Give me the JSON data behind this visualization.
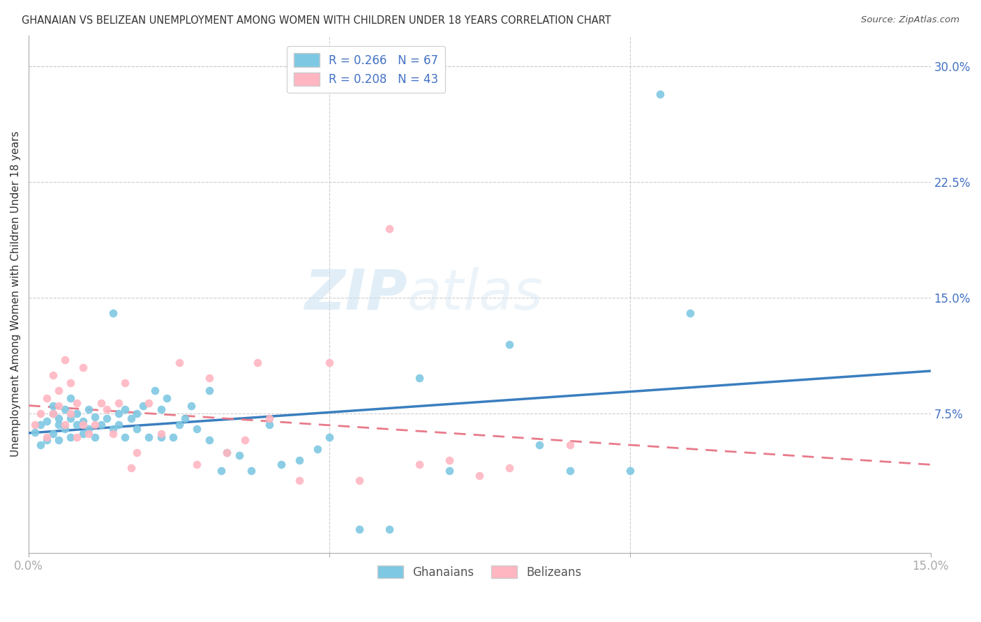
{
  "title": "GHANAIAN VS BELIZEAN UNEMPLOYMENT AMONG WOMEN WITH CHILDREN UNDER 18 YEARS CORRELATION CHART",
  "source": "Source: ZipAtlas.com",
  "ylabel": "Unemployment Among Women with Children Under 18 years",
  "xlim": [
    0.0,
    0.15
  ],
  "ylim": [
    -0.015,
    0.32
  ],
  "yticks_right": [
    0.3,
    0.225,
    0.15,
    0.075
  ],
  "ytick_labels_right": [
    "30.0%",
    "22.5%",
    "15.0%",
    "7.5%"
  ],
  "ghanaian_color": "#7ec8e3",
  "belizean_color": "#ffb6c1",
  "ghanaian_line_color": "#3a7ebf",
  "belizean_line_color": "#e87a8a",
  "R_ghanaian": 0.266,
  "N_ghanaian": 67,
  "R_belizean": 0.208,
  "N_belizean": 43,
  "background_color": "#ffffff",
  "grid_color": "#cccccc",
  "legend_label_ghanaian": "Ghanaians",
  "legend_label_belizean": "Belizeans",
  "ghanaian_x": [
    0.001,
    0.002,
    0.002,
    0.003,
    0.003,
    0.004,
    0.004,
    0.004,
    0.005,
    0.005,
    0.005,
    0.006,
    0.006,
    0.007,
    0.007,
    0.007,
    0.008,
    0.008,
    0.009,
    0.009,
    0.01,
    0.01,
    0.011,
    0.011,
    0.012,
    0.013,
    0.014,
    0.014,
    0.015,
    0.015,
    0.016,
    0.016,
    0.017,
    0.018,
    0.018,
    0.019,
    0.02,
    0.021,
    0.022,
    0.022,
    0.023,
    0.024,
    0.025,
    0.026,
    0.027,
    0.028,
    0.03,
    0.03,
    0.032,
    0.033,
    0.035,
    0.037,
    0.04,
    0.042,
    0.045,
    0.048,
    0.05,
    0.055,
    0.06,
    0.065,
    0.07,
    0.08,
    0.085,
    0.09,
    0.1,
    0.105,
    0.11
  ],
  "ghanaian_y": [
    0.063,
    0.068,
    0.055,
    0.07,
    0.058,
    0.075,
    0.062,
    0.08,
    0.068,
    0.058,
    0.072,
    0.065,
    0.078,
    0.06,
    0.072,
    0.085,
    0.068,
    0.075,
    0.062,
    0.07,
    0.065,
    0.078,
    0.06,
    0.073,
    0.068,
    0.072,
    0.065,
    0.14,
    0.068,
    0.075,
    0.06,
    0.078,
    0.072,
    0.065,
    0.075,
    0.08,
    0.06,
    0.09,
    0.06,
    0.078,
    0.085,
    0.06,
    0.068,
    0.072,
    0.08,
    0.065,
    0.058,
    0.09,
    0.038,
    0.05,
    0.048,
    0.038,
    0.068,
    0.042,
    0.045,
    0.052,
    0.06,
    0.0,
    0.0,
    0.098,
    0.038,
    0.12,
    0.055,
    0.038,
    0.038,
    0.282,
    0.14
  ],
  "belizean_x": [
    0.001,
    0.002,
    0.003,
    0.003,
    0.004,
    0.004,
    0.005,
    0.005,
    0.006,
    0.006,
    0.007,
    0.007,
    0.008,
    0.008,
    0.009,
    0.009,
    0.01,
    0.011,
    0.012,
    0.013,
    0.014,
    0.015,
    0.016,
    0.017,
    0.018,
    0.02,
    0.022,
    0.025,
    0.028,
    0.03,
    0.033,
    0.036,
    0.038,
    0.04,
    0.045,
    0.05,
    0.055,
    0.06,
    0.065,
    0.07,
    0.075,
    0.08,
    0.09
  ],
  "belizean_y": [
    0.068,
    0.075,
    0.06,
    0.085,
    0.075,
    0.1,
    0.08,
    0.09,
    0.068,
    0.11,
    0.075,
    0.095,
    0.06,
    0.082,
    0.068,
    0.105,
    0.062,
    0.068,
    0.082,
    0.078,
    0.062,
    0.082,
    0.095,
    0.04,
    0.05,
    0.082,
    0.062,
    0.108,
    0.042,
    0.098,
    0.05,
    0.058,
    0.108,
    0.072,
    0.032,
    0.108,
    0.032,
    0.195,
    0.042,
    0.045,
    0.035,
    0.04,
    0.055
  ]
}
